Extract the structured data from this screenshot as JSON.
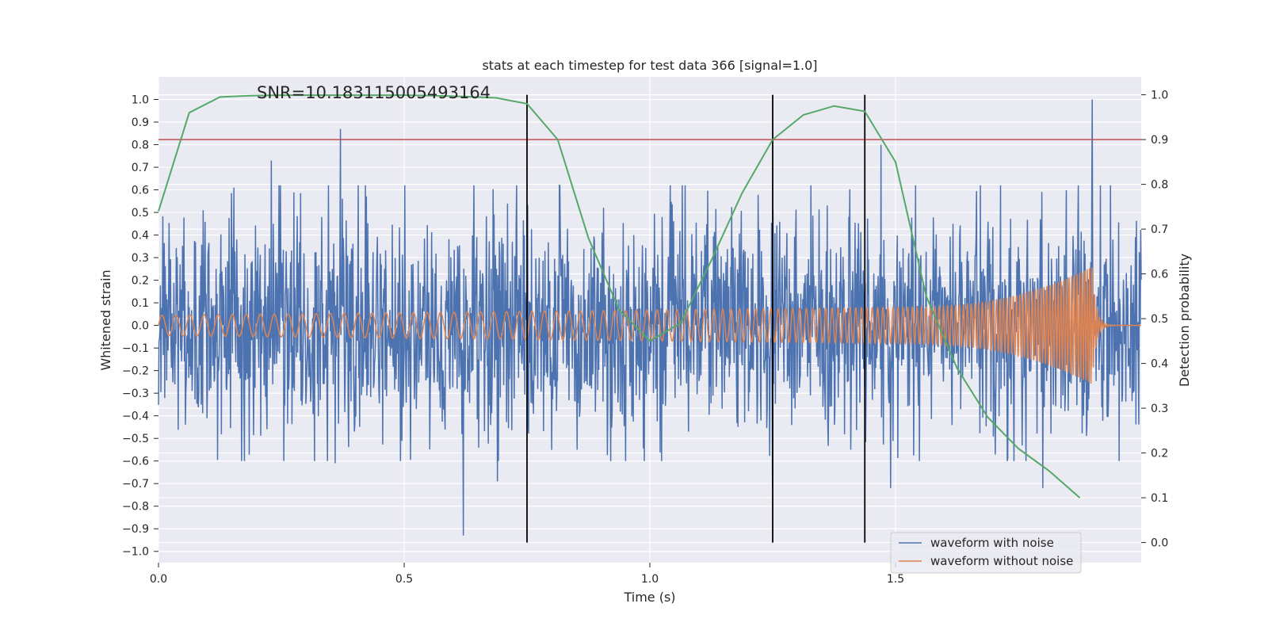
{
  "chart_data": {
    "type": "line",
    "title": "stats at each timestep for test data 366 [signal=1.0]",
    "xlabel": "Time (s)",
    "ylabel": "Whitened strain",
    "y2label": "Detection probability",
    "xlim": [
      0.0,
      2.0
    ],
    "ylim": [
      -1.05,
      1.1
    ],
    "y2lim": [
      -0.045,
      1.04
    ],
    "x_ticks": [
      0.0,
      0.5,
      1.0,
      1.5
    ],
    "x_tick_labels": [
      "0.0",
      "0.5",
      "1.0",
      "1.5"
    ],
    "y_ticks": [
      1.0,
      0.9,
      0.8,
      0.7,
      0.6,
      0.5,
      0.4,
      0.3,
      0.2,
      0.1,
      0.0,
      -0.1,
      -0.2,
      -0.3,
      -0.4,
      -0.5,
      -0.6,
      -0.7,
      -0.8,
      -0.9,
      -1.0
    ],
    "y_tick_labels": [
      "1.0",
      "0.9",
      "0.8",
      "0.7",
      "0.6",
      "0.5",
      "0.4",
      "0.3",
      "0.2",
      "0.1",
      "0.0",
      "−0.1",
      "−0.2",
      "−0.3",
      "−0.4",
      "−0.5",
      "−0.6",
      "−0.7",
      "−0.8",
      "−0.9",
      "−1.0"
    ],
    "y2_ticks": [
      1.0,
      0.9,
      0.8,
      0.7,
      0.6,
      0.5,
      0.4,
      0.3,
      0.2,
      0.1,
      0.0
    ],
    "y2_tick_labels": [
      "1.0",
      "0.9",
      "0.8",
      "0.7",
      "0.6",
      "0.5",
      "0.4",
      "0.3",
      "0.2",
      "0.1",
      "0.0"
    ],
    "grid": true,
    "legend_location": "lower right",
    "annotation": {
      "text": "SNR=10.183115005493164",
      "x": 0.2,
      "y": 1.0
    },
    "series": [
      {
        "name": "waveform with noise",
        "axis": "left",
        "color": "#4c72b0",
        "sampling_rate_hz": 1024,
        "duration_s": 2.0,
        "amplitude_scale": 0.3,
        "peaks": [
          {
            "x": 0.37,
            "y": 0.87
          },
          {
            "x": 0.23,
            "y": 0.73
          },
          {
            "x": 0.62,
            "y": -0.93
          },
          {
            "x": 0.36,
            "y": -0.61
          },
          {
            "x": 0.69,
            "y": -0.69
          },
          {
            "x": 1.25,
            "y": -0.72
          },
          {
            "x": 1.47,
            "y": 0.8
          },
          {
            "x": 1.49,
            "y": -0.72
          },
          {
            "x": 1.8,
            "y": -0.72
          },
          {
            "x": 1.9,
            "y": 1.0
          }
        ]
      },
      {
        "name": "waveform without noise",
        "axis": "left",
        "color": "#dd8452",
        "chirp": {
          "start_frequency_hz": 35,
          "end_frequency_hz": 200,
          "merger_time_s": 1.9,
          "amplitude_start": 0.045,
          "amplitude_at_1_5s": 0.08,
          "amplitude_peak": 0.26
        }
      },
      {
        "name": "detection probability",
        "axis": "right",
        "color": "#55a868",
        "x": [
          0.0,
          0.0625,
          0.125,
          0.1875,
          0.25,
          0.3125,
          0.375,
          0.4375,
          0.5,
          0.5625,
          0.625,
          0.6875,
          0.75,
          0.8125,
          0.875,
          0.9375,
          1.0,
          1.0625,
          1.125,
          1.1875,
          1.25,
          1.3125,
          1.375,
          1.4375,
          1.5,
          1.5625,
          1.625,
          1.6875,
          1.75,
          1.8125,
          1.875
        ],
        "y": [
          0.74,
          0.96,
          0.995,
          0.998,
          0.999,
          0.999,
          0.999,
          0.999,
          0.999,
          0.998,
          0.996,
          0.993,
          0.98,
          0.9,
          0.68,
          0.52,
          0.45,
          0.49,
          0.63,
          0.78,
          0.9,
          0.955,
          0.975,
          0.963,
          0.85,
          0.55,
          0.39,
          0.28,
          0.21,
          0.16,
          0.1
        ]
      }
    ],
    "threshold_line": {
      "y2": 0.9,
      "color": "#c44e52"
    },
    "vertical_lines": {
      "x": [
        0.75,
        1.25,
        1.4375
      ],
      "y2_range": [
        0.0,
        1.0
      ],
      "color": "#000000"
    },
    "legend": [
      {
        "label": "waveform with noise",
        "color": "#4c72b0"
      },
      {
        "label": "waveform without noise",
        "color": "#dd8452"
      }
    ]
  }
}
